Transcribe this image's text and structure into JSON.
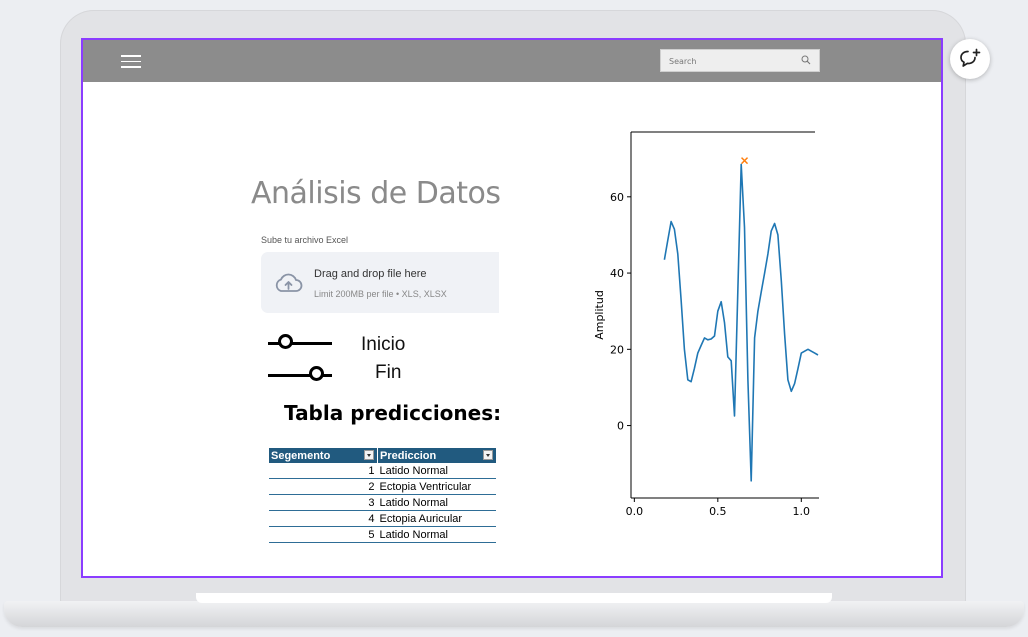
{
  "topbar": {
    "search_placeholder": "Search"
  },
  "main": {
    "title": "Análisis de Datos",
    "upload": {
      "label": "Sube tu archivo Excel",
      "drag_text": "Drag and drop file here",
      "limit_text": "Limit 200MB per file • XLS, XLSX"
    },
    "sliders": [
      {
        "label": "Inicio",
        "value_fraction": 0.27
      },
      {
        "label": "Fin",
        "value_fraction": 0.75
      }
    ],
    "table": {
      "title": "Tabla predicciones:",
      "headers": [
        "Segemento",
        "Prediccion"
      ],
      "rows": [
        [
          "1",
          "Latido Normal"
        ],
        [
          "2",
          "Ectopia Ventricular"
        ],
        [
          "3",
          "Latido Normal"
        ],
        [
          "4",
          "Ectopia Auricular"
        ],
        [
          "5",
          "Latido Normal"
        ]
      ]
    }
  },
  "chart_data": {
    "type": "line",
    "title": "",
    "xlabel": "",
    "ylabel": "Amplitud",
    "xlim": [
      -0.02,
      1.1
    ],
    "ylim": [
      -19,
      77
    ],
    "xticks": [
      "0.0",
      "0.5",
      "1.0"
    ],
    "xtick_values": [
      0,
      0.5,
      1.0
    ],
    "yticks": [
      "0",
      "20",
      "40",
      "60"
    ],
    "ytick_values": [
      0,
      20,
      40,
      60
    ],
    "grid": false,
    "colors": {
      "line": "#1f77b4",
      "marker": "#ff7f0e"
    },
    "series": [
      {
        "values_x": [
          0.18,
          0.2,
          0.22,
          0.24,
          0.26,
          0.28,
          0.3,
          0.32,
          0.34,
          0.36,
          0.38,
          0.4,
          0.42,
          0.44,
          0.46,
          0.48,
          0.5,
          0.52,
          0.54,
          0.56,
          0.58,
          0.6,
          0.62,
          0.64,
          0.66,
          0.68,
          0.7,
          0.72,
          0.74,
          0.76,
          0.78,
          0.8,
          0.82,
          0.84,
          0.86,
          0.88,
          0.9,
          0.92,
          0.94,
          0.96,
          0.98,
          1.0,
          1.02,
          1.04,
          1.06,
          1.08,
          1.1
        ],
        "values_y": [
          43.5,
          48.5,
          53.5,
          51.5,
          45,
          33,
          20,
          12,
          11.5,
          15,
          19,
          21,
          23,
          22.5,
          22.7,
          23.5,
          30,
          32.5,
          27,
          18,
          17,
          2.5,
          36,
          68.5,
          52,
          12,
          -14.5,
          23,
          30,
          35,
          40,
          45,
          51,
          53,
          50,
          38,
          24,
          12,
          9,
          11,
          15,
          19,
          19.5,
          20,
          19.5,
          19,
          18.5
        ]
      }
    ],
    "marker_point": {
      "x": 0.66,
      "y": 69.5
    }
  }
}
